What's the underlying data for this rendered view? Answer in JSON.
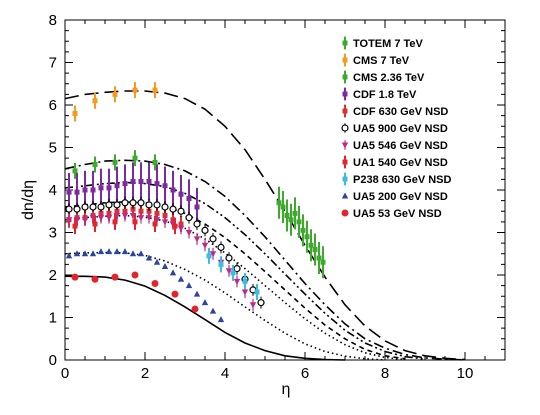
{
  "chart_data": {
    "type": "scatter",
    "xlabel": "η",
    "ylabel": "dn/dη",
    "xlim": [
      0,
      11
    ],
    "ylim": [
      0,
      8
    ],
    "x_ticks": [
      "0",
      "2",
      "4",
      "6",
      "8",
      "10"
    ],
    "y_ticks": [
      "0",
      "1",
      "2",
      "3",
      "4",
      "5",
      "6",
      "7",
      "8"
    ],
    "grid": false,
    "legend_position": "top-right",
    "series": [
      {
        "name": "TOTEM 7 TeV",
        "color": "#3daa2c",
        "marker": "cross",
        "x": [
          5.35,
          5.45,
          5.55,
          5.65,
          5.75,
          5.85,
          5.95,
          6.05,
          6.15,
          6.25,
          6.35,
          6.45
        ],
        "y": [
          3.7,
          3.6,
          3.4,
          3.3,
          3.45,
          3.25,
          3.05,
          2.9,
          2.7,
          2.6,
          2.4,
          2.3
        ]
      },
      {
        "name": "CMS 7 TeV",
        "color": "#f39a1f",
        "marker": "cross",
        "x": [
          0.25,
          0.75,
          1.25,
          1.75,
          2.25
        ],
        "y": [
          5.8,
          6.1,
          6.25,
          6.35,
          6.35
        ]
      },
      {
        "name": "CMS 2.36 TeV",
        "color": "#3daa2c",
        "marker": "cross",
        "x": [
          0.25,
          0.75,
          1.25,
          1.75,
          2.25
        ],
        "y": [
          4.45,
          4.6,
          4.65,
          4.75,
          4.65
        ]
      },
      {
        "name": "CDF 1.8 TeV",
        "color": "#7b2aa0",
        "marker": "cross",
        "x": [
          0.1,
          0.3,
          0.5,
          0.7,
          0.9,
          1.1,
          1.3,
          1.5,
          1.7,
          1.9,
          2.1,
          2.3,
          2.5,
          2.7,
          2.9,
          3.1,
          3.3
        ],
        "y": [
          3.95,
          3.95,
          4.0,
          4.0,
          4.05,
          4.05,
          4.1,
          4.15,
          4.2,
          4.2,
          4.2,
          4.15,
          4.1,
          4.0,
          3.9,
          3.8,
          3.6
        ]
      },
      {
        "name": "CDF 630 GeV NSD",
        "color": "#d9342c",
        "marker": "cross",
        "x": [
          0.1,
          0.3,
          0.5,
          0.7,
          0.9,
          1.1,
          1.3,
          1.5,
          1.7,
          1.9,
          2.1,
          2.3,
          2.5,
          2.7,
          2.9
        ],
        "y": [
          3.3,
          3.35,
          3.35,
          3.4,
          3.45,
          3.45,
          3.5,
          3.5,
          3.55,
          3.5,
          3.5,
          3.45,
          3.4,
          3.3,
          3.2
        ]
      },
      {
        "name": "UA5 900 GeV NSD",
        "color": "#000000",
        "marker": "open-circle",
        "x": [
          0.1,
          0.3,
          0.5,
          0.7,
          0.9,
          1.1,
          1.3,
          1.5,
          1.7,
          1.9,
          2.1,
          2.3,
          2.5,
          2.7,
          2.9,
          3.1,
          3.3,
          3.5,
          3.7,
          3.9,
          4.1,
          4.3,
          4.5,
          4.7,
          4.9
        ],
        "y": [
          3.55,
          3.55,
          3.6,
          3.6,
          3.6,
          3.65,
          3.65,
          3.7,
          3.7,
          3.7,
          3.65,
          3.65,
          3.6,
          3.55,
          3.5,
          3.35,
          3.2,
          3.05,
          2.85,
          2.65,
          2.4,
          2.15,
          1.9,
          1.65,
          1.35
        ]
      },
      {
        "name": "UA5 546 GeV NSD",
        "color": "#c0288a",
        "marker": "triangle-down",
        "x": [
          0.1,
          0.3,
          0.5,
          0.7,
          0.9,
          1.1,
          1.3,
          1.5,
          1.7,
          1.9,
          2.1,
          2.3,
          2.5,
          2.7,
          2.9,
          3.1,
          3.3,
          3.5,
          3.7,
          3.9,
          4.1,
          4.3,
          4.5,
          4.7
        ],
        "y": [
          3.3,
          3.3,
          3.3,
          3.35,
          3.35,
          3.35,
          3.4,
          3.4,
          3.4,
          3.35,
          3.35,
          3.3,
          3.25,
          3.2,
          3.1,
          3.0,
          2.85,
          2.7,
          2.5,
          2.3,
          2.1,
          1.85,
          1.6,
          1.3
        ]
      },
      {
        "name": "UA1 540 GeV NSD",
        "color": "#e0262c",
        "marker": "cross",
        "x": [
          0.25,
          0.75,
          1.25,
          1.75,
          2.25,
          2.75
        ],
        "y": [
          3.15,
          3.2,
          3.25,
          3.25,
          3.2,
          3.15
        ]
      },
      {
        "name": "P238 630 GeV NSD",
        "color": "#3cbce0",
        "marker": "cross",
        "x": [
          3.6,
          3.9,
          4.2,
          4.5,
          4.8
        ],
        "y": [
          2.45,
          2.25,
          2.05,
          1.85,
          1.6
        ]
      },
      {
        "name": "UA5 200 GeV NSD",
        "color": "#2a46a0",
        "marker": "triangle-up",
        "x": [
          0.1,
          0.3,
          0.5,
          0.7,
          0.9,
          1.1,
          1.3,
          1.5,
          1.7,
          1.9,
          2.1,
          2.3,
          2.5,
          2.7,
          2.9,
          3.1,
          3.3,
          3.5,
          3.7,
          3.9
        ],
        "y": [
          2.45,
          2.5,
          2.5,
          2.5,
          2.55,
          2.55,
          2.55,
          2.55,
          2.5,
          2.5,
          2.4,
          2.3,
          2.2,
          2.05,
          1.9,
          1.75,
          1.55,
          1.35,
          1.15,
          0.95
        ]
      },
      {
        "name": "UA5 53 GeV NSD",
        "color": "#e0262c",
        "marker": "filled-circle",
        "x": [
          0.25,
          0.75,
          1.25,
          1.75,
          2.25,
          2.75,
          3.25
        ],
        "y": [
          1.95,
          1.9,
          1.95,
          2.0,
          1.8,
          1.55,
          1.2
        ]
      }
    ],
    "curves": [
      {
        "style": "long-dash",
        "x": [
          0,
          0.5,
          1,
          1.5,
          2,
          2.5,
          3,
          3.5,
          4,
          4.5,
          5,
          5.5,
          6,
          6.5,
          7,
          7.5,
          8,
          8.5,
          9,
          9.5,
          10
        ],
        "y": [
          6.15,
          6.25,
          6.3,
          6.33,
          6.33,
          6.28,
          6.15,
          5.9,
          5.5,
          4.95,
          4.25,
          3.5,
          2.7,
          1.95,
          1.3,
          0.8,
          0.45,
          0.22,
          0.1,
          0.04,
          0.01
        ]
      },
      {
        "style": "dash-dot",
        "x": [
          0,
          0.5,
          1,
          1.5,
          2,
          2.5,
          3,
          3.5,
          4,
          4.5,
          5,
          5.5,
          6,
          6.5,
          7,
          7.5,
          8,
          8.5,
          9,
          9.5,
          10
        ],
        "y": [
          4.5,
          4.6,
          4.68,
          4.7,
          4.68,
          4.6,
          4.45,
          4.2,
          3.85,
          3.4,
          2.9,
          2.35,
          1.8,
          1.3,
          0.85,
          0.5,
          0.28,
          0.13,
          0.05,
          0.02,
          0.0
        ]
      },
      {
        "style": "dash-dot-dot",
        "x": [
          0,
          0.5,
          1,
          1.5,
          2,
          2.5,
          3,
          3.5,
          4,
          4.5,
          5,
          5.5,
          6,
          6.5,
          7,
          7.5,
          8,
          8.5,
          9
        ],
        "y": [
          4.05,
          4.1,
          4.15,
          4.18,
          4.15,
          4.08,
          3.92,
          3.68,
          3.35,
          2.95,
          2.5,
          2.02,
          1.55,
          1.1,
          0.7,
          0.4,
          0.2,
          0.08,
          0.02
        ]
      },
      {
        "style": "short-dash",
        "x": [
          0,
          0.5,
          1,
          1.5,
          2,
          2.5,
          3,
          3.5,
          4,
          4.5,
          5,
          5.5,
          6,
          6.5,
          7,
          7.5,
          8,
          8.5
        ],
        "y": [
          3.6,
          3.65,
          3.7,
          3.72,
          3.7,
          3.62,
          3.45,
          3.2,
          2.88,
          2.5,
          2.08,
          1.65,
          1.22,
          0.82,
          0.5,
          0.25,
          0.1,
          0.03
        ]
      },
      {
        "style": "dotted",
        "x": [
          0,
          0.5,
          1,
          1.5,
          2,
          2.5,
          3,
          3.5,
          4,
          4.5,
          5,
          5.5,
          6,
          6.5,
          7,
          7.5,
          8,
          8.5
        ],
        "y": [
          3.3,
          3.35,
          3.38,
          3.4,
          3.36,
          3.27,
          3.1,
          2.85,
          2.52,
          2.15,
          1.75,
          1.35,
          0.97,
          0.63,
          0.36,
          0.17,
          0.06,
          0.01
        ]
      },
      {
        "style": "dotted",
        "x": [
          0,
          0.5,
          1,
          1.5,
          2,
          2.5,
          3,
          3.5,
          4,
          4.5,
          5,
          5.5,
          6,
          6.5,
          7,
          7.5,
          8
        ],
        "y": [
          2.5,
          2.52,
          2.53,
          2.52,
          2.46,
          2.33,
          2.13,
          1.88,
          1.58,
          1.25,
          0.93,
          0.63,
          0.38,
          0.2,
          0.09,
          0.03,
          0.0
        ]
      },
      {
        "style": "solid",
        "x": [
          0,
          0.5,
          1,
          1.5,
          2,
          2.5,
          3,
          3.5,
          4,
          4.5,
          5,
          5.5,
          6,
          6.5,
          7
        ],
        "y": [
          1.97,
          1.97,
          1.95,
          1.88,
          1.74,
          1.52,
          1.25,
          0.95,
          0.65,
          0.4,
          0.22,
          0.1,
          0.04,
          0.01,
          0.0
        ]
      }
    ]
  }
}
